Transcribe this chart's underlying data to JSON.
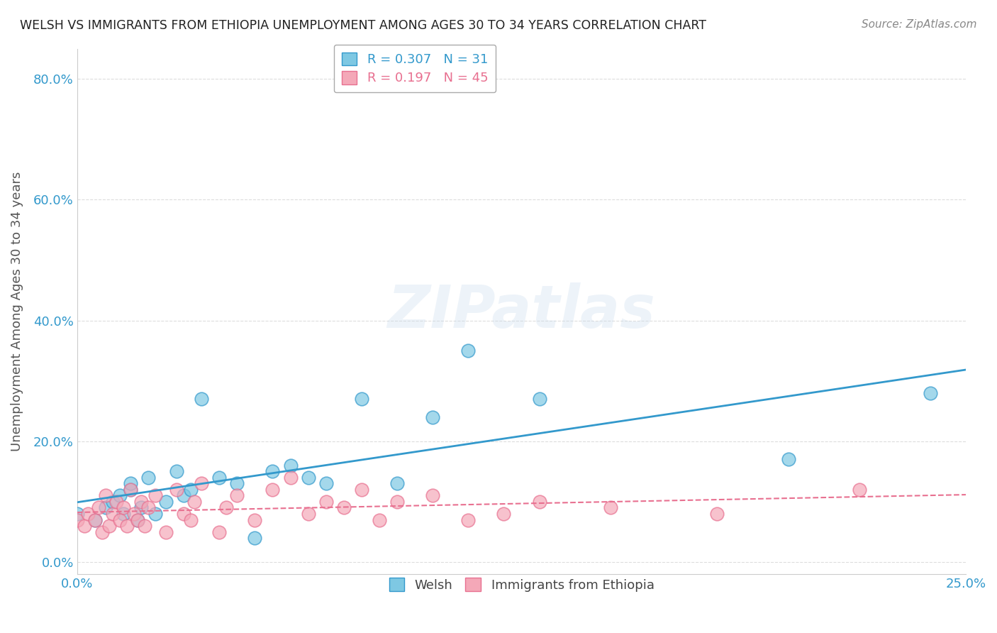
{
  "title": "WELSH VS IMMIGRANTS FROM ETHIOPIA UNEMPLOYMENT AMONG AGES 30 TO 34 YEARS CORRELATION CHART",
  "source": "Source: ZipAtlas.com",
  "xlabel_ticks": [
    "0.0%",
    "25.0%"
  ],
  "ylabel_label": "Unemployment Among Ages 30 to 34 years",
  "ylabel_ticks": [
    "0.0%",
    "20.0%",
    "40.0%",
    "60.0%",
    "80.0%"
  ],
  "xlim": [
    0.0,
    0.25
  ],
  "ylim": [
    -0.02,
    0.85
  ],
  "welsh_R": "0.307",
  "welsh_N": "31",
  "ethiopia_R": "0.197",
  "ethiopia_N": "45",
  "welsh_color": "#7ec8e3",
  "ethiopia_color": "#f4a8b8",
  "welsh_line_color": "#3399cc",
  "ethiopia_line_color": "#e87090",
  "watermark": "ZIPatlas",
  "welsh_scatter_x": [
    0.0,
    0.005,
    0.008,
    0.01,
    0.012,
    0.013,
    0.015,
    0.015,
    0.017,
    0.018,
    0.02,
    0.022,
    0.025,
    0.028,
    0.03,
    0.032,
    0.035,
    0.04,
    0.045,
    0.05,
    0.055,
    0.06,
    0.065,
    0.07,
    0.08,
    0.09,
    0.1,
    0.11,
    0.13,
    0.2,
    0.24
  ],
  "welsh_scatter_y": [
    0.08,
    0.07,
    0.09,
    0.1,
    0.11,
    0.08,
    0.12,
    0.13,
    0.07,
    0.09,
    0.14,
    0.08,
    0.1,
    0.15,
    0.11,
    0.12,
    0.27,
    0.14,
    0.13,
    0.04,
    0.15,
    0.16,
    0.14,
    0.13,
    0.27,
    0.13,
    0.24,
    0.35,
    0.27,
    0.17,
    0.28
  ],
  "ethiopia_scatter_x": [
    0.0,
    0.002,
    0.003,
    0.005,
    0.006,
    0.007,
    0.008,
    0.009,
    0.01,
    0.011,
    0.012,
    0.013,
    0.014,
    0.015,
    0.016,
    0.017,
    0.018,
    0.019,
    0.02,
    0.022,
    0.025,
    0.028,
    0.03,
    0.032,
    0.033,
    0.035,
    0.04,
    0.042,
    0.045,
    0.05,
    0.055,
    0.06,
    0.065,
    0.07,
    0.075,
    0.08,
    0.085,
    0.09,
    0.1,
    0.11,
    0.12,
    0.13,
    0.15,
    0.18,
    0.22
  ],
  "ethiopia_scatter_y": [
    0.07,
    0.06,
    0.08,
    0.07,
    0.09,
    0.05,
    0.11,
    0.06,
    0.08,
    0.1,
    0.07,
    0.09,
    0.06,
    0.12,
    0.08,
    0.07,
    0.1,
    0.06,
    0.09,
    0.11,
    0.05,
    0.12,
    0.08,
    0.07,
    0.1,
    0.13,
    0.05,
    0.09,
    0.11,
    0.07,
    0.12,
    0.14,
    0.08,
    0.1,
    0.09,
    0.12,
    0.07,
    0.1,
    0.11,
    0.07,
    0.08,
    0.1,
    0.09,
    0.08,
    0.12
  ],
  "background_color": "#ffffff",
  "grid_color": "#dddddd",
  "title_color": "#222222",
  "axis_label_color": "#555555",
  "tick_color": "#3399cc",
  "legend_label_color": "#3399cc",
  "legend_label2_color": "#e87090"
}
